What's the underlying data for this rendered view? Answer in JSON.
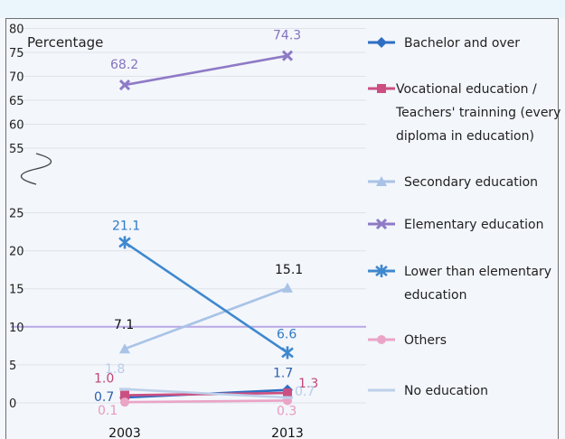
{
  "chart_data": {
    "type": "line",
    "ylabel": "Percentage",
    "categories": [
      "2003",
      "2013"
    ],
    "y_ticks": [
      0,
      5,
      10,
      15,
      20,
      25,
      55,
      60,
      65,
      70,
      75,
      80
    ],
    "axis_break": [
      25,
      55
    ],
    "legend_position": "right",
    "grid": true,
    "series": [
      {
        "name": "Bachelor and over",
        "values": [
          0.7,
          1.7
        ],
        "labels": [
          "0.7",
          "1.7"
        ],
        "color": "#2f6fc3",
        "marker": "diamond"
      },
      {
        "name": "Vocational education / Teachers' trainning (every diploma in education)",
        "legend_lines": [
          "Vocational education /",
          "Teachers' trainning (every",
          "diploma in education)"
        ],
        "values": [
          1.0,
          1.3
        ],
        "labels": [
          "1.0",
          "1.3"
        ],
        "color": "#cc4f82",
        "marker": "square"
      },
      {
        "name": "Secondary education",
        "values": [
          7.1,
          15.1
        ],
        "labels": [
          "7.1",
          "15.1"
        ],
        "color": "#a9c3e6",
        "marker": "triangle"
      },
      {
        "name": "Elementary education",
        "values": [
          68.2,
          74.3
        ],
        "labels": [
          "68.2",
          "74.3"
        ],
        "color": "#8e7ac6",
        "marker": "x"
      },
      {
        "name": "Lower than elementary education",
        "legend_lines": [
          "Lower than elementary",
          "education"
        ],
        "values": [
          21.1,
          6.6
        ],
        "labels": [
          "21.1",
          "6.6"
        ],
        "color": "#3f88cf",
        "marker": "star"
      },
      {
        "name": "Others",
        "values": [
          0.1,
          0.3
        ],
        "labels": [
          "0.1",
          "0.3"
        ],
        "color": "#eaa4c6",
        "marker": "circle"
      },
      {
        "name": "No education",
        "values": [
          1.8,
          0.7
        ],
        "labels": [
          "1.8",
          "0.7"
        ],
        "color": "#bcd0ea",
        "marker": "dash"
      }
    ]
  }
}
